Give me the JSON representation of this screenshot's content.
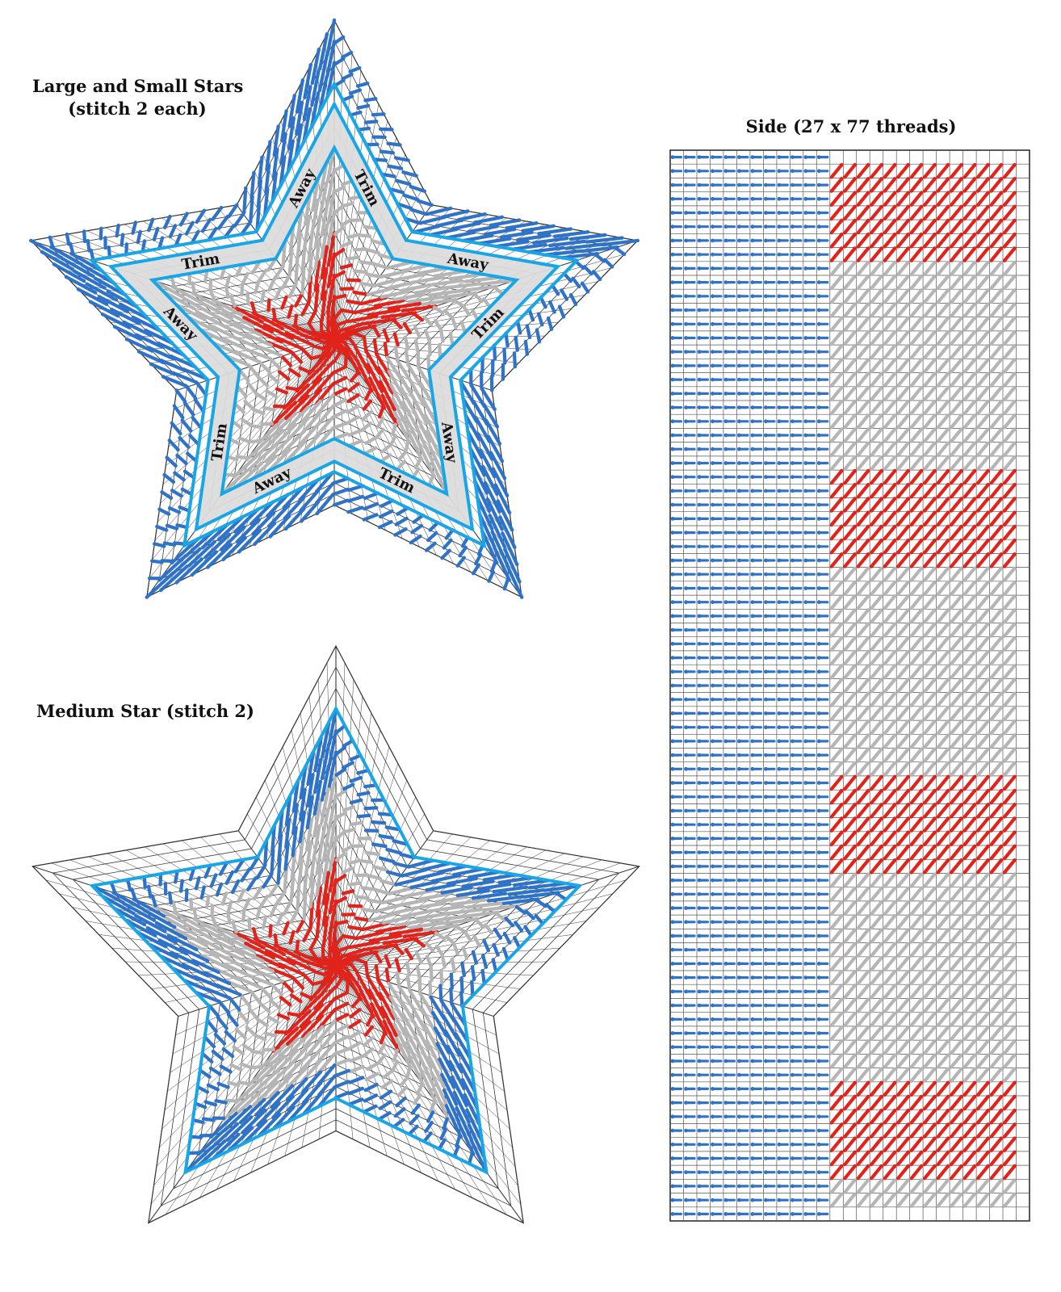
{
  "labels": {
    "large_star_title": "Large and Small Stars",
    "large_star_subtitle": "(stitch 2 each)",
    "medium_star_title": "Medium Star (stitch 2)",
    "side_title": "Side (27 x 77 threads)"
  },
  "trim_labels": {
    "trim": "Trim",
    "away": "Away"
  },
  "side_panel": {
    "columns": 27,
    "rows": 77,
    "blue_columns": 12,
    "red_bands": [
      {
        "start_row": 1,
        "end_row": 7
      },
      {
        "start_row": 23,
        "end_row": 29
      },
      {
        "start_row": 45,
        "end_row": 51
      },
      {
        "start_row": 67,
        "end_row": 73
      }
    ]
  },
  "colors": {
    "blue": "#2f73c8",
    "light_blue": "#19a6e6",
    "red": "#e1231c",
    "gray": "#b5b5b5",
    "trim_band": "#dcdcdc",
    "grid": "#555555"
  }
}
